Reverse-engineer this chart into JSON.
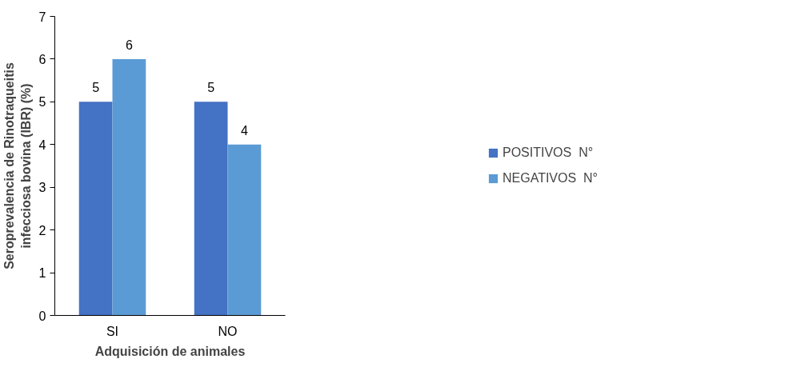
{
  "chart_data": {
    "type": "bar",
    "categories": [
      "SI",
      "NO"
    ],
    "series": [
      {
        "name": "POSITIVOS  N°",
        "color": "#4472c4",
        "values": [
          5,
          5
        ]
      },
      {
        "name": "NEGATIVOS  N°",
        "color": "#5b9bd5",
        "values": [
          6,
          4
        ]
      }
    ],
    "xlabel": "Adquisición de animales",
    "ylabel": "Seroprevalencia de Rinotraqueitis\ninfecciosa bovina (IBR) (%)",
    "ylim": [
      0,
      7
    ],
    "yticks": [
      0,
      1,
      2,
      3,
      4,
      5,
      6,
      7
    ],
    "grid": false,
    "legend": "right",
    "data_labels": true
  }
}
